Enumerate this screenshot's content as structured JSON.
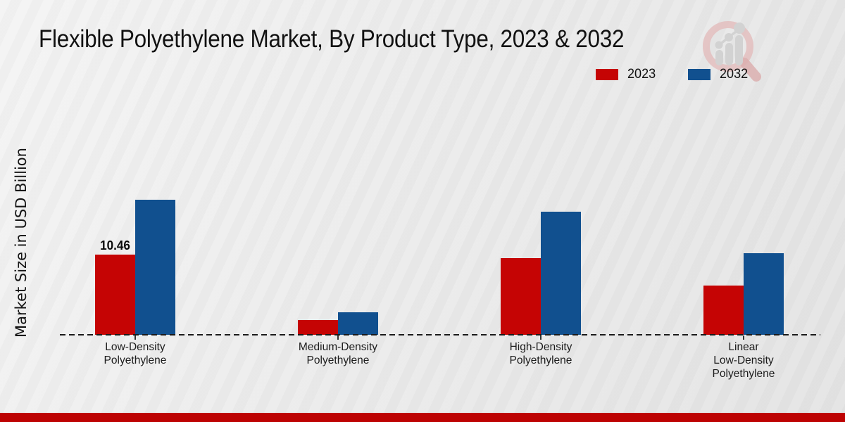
{
  "header": {
    "title": "Flexible Polyethylene Market, By Product Type, 2023 & 2032"
  },
  "watermark": {
    "icon": "magnifier-bar-chart-logo-icon"
  },
  "y_axis": {
    "label": "Market Size in USD Billion"
  },
  "legend": {
    "items": [
      {
        "label": "2023",
        "color": "#c50404"
      },
      {
        "label": "2032",
        "color": "#11508f"
      }
    ]
  },
  "footer": {
    "strip_color": "#bd0202"
  },
  "chart_data": {
    "type": "bar",
    "title": "Flexible Polyethylene Market, By Product Type, 2023 & 2032",
    "xlabel": "",
    "ylabel": "Market Size in USD Billion",
    "categories": [
      "Low-Density Polyethylene",
      "Medium-Density Polyethylene",
      "High-Density Polyethylene",
      "Linear Low-Density Polyethylene"
    ],
    "category_label_lines": [
      [
        "Low-Density",
        "Polyethylene"
      ],
      [
        "Medium-Density",
        "Polyethylene"
      ],
      [
        "High-Density",
        "Polyethylene"
      ],
      [
        "Linear",
        "Low-Density",
        "Polyethylene"
      ]
    ],
    "series": [
      {
        "name": "2023",
        "color": "#c50404",
        "values": [
          10.46,
          1.9,
          10.0,
          6.4
        ]
      },
      {
        "name": "2032",
        "color": "#11508f",
        "values": [
          17.6,
          2.9,
          16.1,
          10.6
        ]
      }
    ],
    "data_labels": [
      {
        "series_index": 0,
        "category_index": 0,
        "text": "10.46"
      }
    ],
    "ylim": [
      0,
      20
    ],
    "grid": false,
    "baseline_style": "dashed",
    "legend_position": "top-right"
  }
}
